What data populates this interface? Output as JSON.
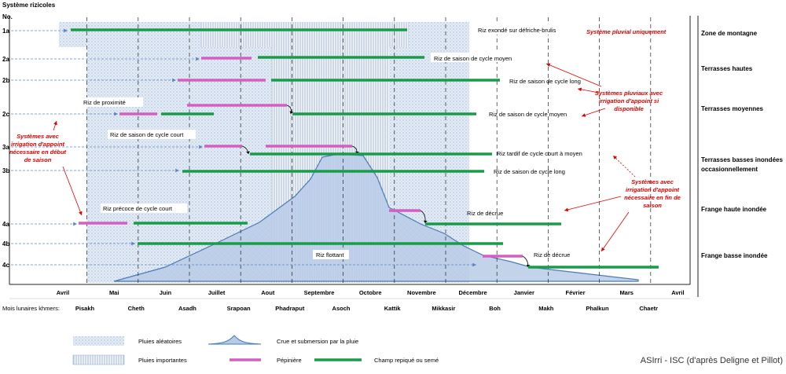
{
  "title": "Système rizicoles",
  "no_header": "No.",
  "rows": [
    {
      "id": "1a",
      "zone": "Zone de montagne",
      "label": "Riz exondé sur défriche-brulis"
    },
    {
      "id": "2a",
      "zone": "Terrasses hautes",
      "label": "Riz de saison de cycle moyen"
    },
    {
      "id": "2b",
      "zone": "",
      "label": "Riz de saison de cycle long"
    },
    {
      "id": "2c",
      "zone": "Terrasses moyennes",
      "label": "Riz de saison de cycle moyen",
      "label2": "Riz de proximité"
    },
    {
      "id": "3a",
      "zone": "Terrasses basses inondées occasionnellement",
      "label": "Riz tardif de cycle  court à moyen",
      "label2": "Riz de saison de cycle court"
    },
    {
      "id": "3b",
      "zone": "",
      "label": "Riz de saison de cycle long"
    },
    {
      "id": "4a",
      "zone": "Frange haute inondée",
      "label": "Riz de décrue",
      "label2": "Riz précoce de cycle court"
    },
    {
      "id": "4b",
      "zone": "Frange basse inondée",
      "label": ""
    },
    {
      "id": "4c",
      "zone": "",
      "label": "Riz de décrue",
      "label2": "Riz flottant"
    }
  ],
  "annotations": {
    "pluvial": "Système pluvial uniquement",
    "pluviaux": [
      "Systèmes pluviaux avec",
      "irrigation d'appoint si",
      "disponible"
    ],
    "debut": [
      "Systèmes avec",
      "irrigation d'appoint",
      "nécessaire en début",
      "de saison"
    ],
    "fin": [
      "Systèmes avec",
      "irrigation d'appoint",
      "nécessaire en fin de",
      "saison"
    ]
  },
  "months": [
    "Avril",
    "Mai",
    "Juin",
    "Juillet",
    "Aout",
    "Septembre",
    "Octobre",
    "Novembre",
    "Décembre",
    "Janvier",
    "Février",
    "Mars",
    "Avril"
  ],
  "lunar_label": "Mois lunaires khmers:",
  "lunar_months": [
    "Pisakh",
    "Cheth",
    "Asadh",
    "Srapoan",
    "Phadraput",
    "Asoch",
    "Kattik",
    "Mikkasir",
    "Boh",
    "Makh",
    "Phalkun",
    "Chaetr"
  ],
  "legend": {
    "pluies_aleatoires": "Pluies aléatoires",
    "pluies_importantes": "Pluies importantes",
    "crue": "Crue et submersion par la pluie",
    "pepiniere": "Pépinière",
    "champ": "Champ repiqué ou semé"
  },
  "credit": "ASIrri - ISC (d'après Deligne et Pillot)",
  "colors": {
    "champ": "#1a9b4a",
    "pepiniere": "#d35fc0",
    "crue_fill": "#b8cbe6",
    "crue_line": "#4a7ab8",
    "annotation": "#e00000",
    "rain": "#9fb6d4"
  }
}
